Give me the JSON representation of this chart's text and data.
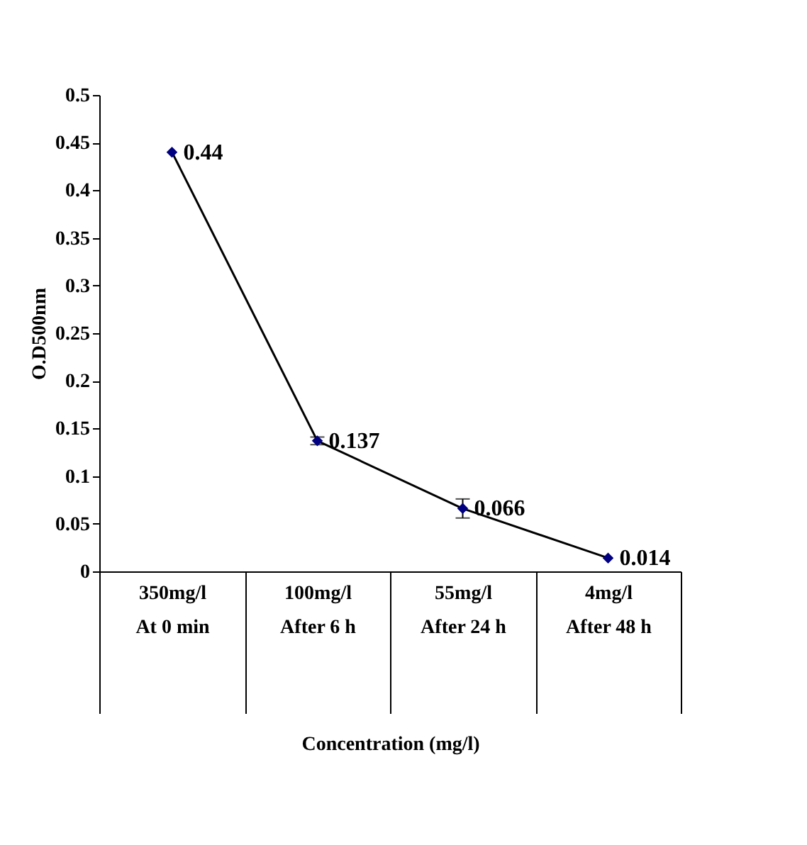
{
  "chart_data": {
    "type": "line",
    "categories": [
      "350mg/l\nAt 0 min",
      "100mg/l\nAfter 6 h",
      "55mg/l\nAfter 24 h",
      "4mg/l\nAfter 48 h"
    ],
    "values": [
      0.44,
      0.137,
      0.066,
      0.014
    ],
    "errors": [
      null,
      0.004,
      0.01,
      null
    ],
    "color": "#000080",
    "marker": "diamond",
    "line_style": "solid",
    "data_labels": true,
    "xlabel": "Concentration (mg/l)",
    "ylabel": "O.D500nm",
    "ylim": [
      0,
      0.5
    ],
    "yticks": [
      0,
      0.05,
      0.1,
      0.15,
      0.2,
      0.25,
      0.3,
      0.35,
      0.4,
      0.45,
      0.5
    ],
    "grid": false
  }
}
